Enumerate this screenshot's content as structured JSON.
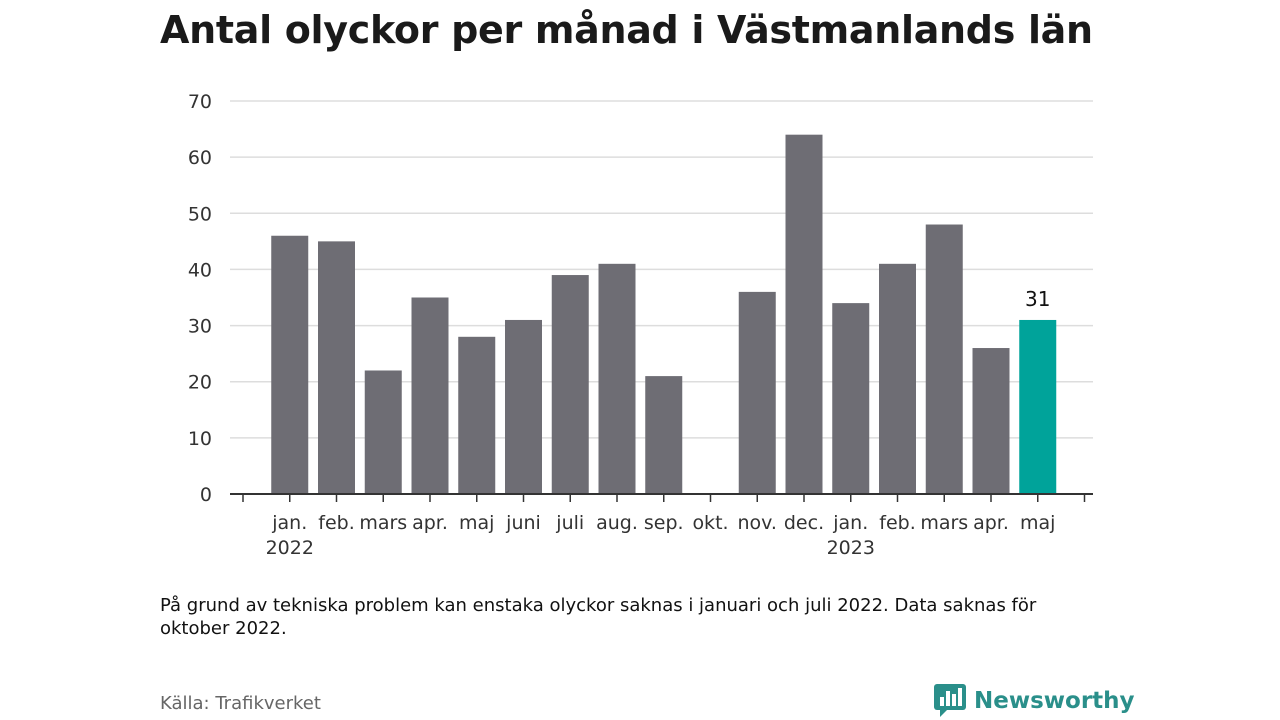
{
  "title": "Antal olyckor per månad i Västmanlands län",
  "note": "På grund av tekniska problem kan enstaka olyckor saknas i januari och juli 2022. Data saknas för oktober 2022.",
  "source": "Källa: Trafikverket",
  "brand": {
    "name": "Newsworthy",
    "icon": "bar-chart-speech-bubble-icon"
  },
  "colors": {
    "bar": "#6e6d74",
    "highlight": "#00a39a",
    "grid": "#dddddd",
    "axis": "#333333",
    "text": "#333333"
  },
  "chart_data": {
    "type": "bar",
    "categories": [
      "jan.",
      "feb.",
      "mars",
      "apr.",
      "maj",
      "juni",
      "juli",
      "aug.",
      "sep.",
      "okt.",
      "nov.",
      "dec.",
      "jan.",
      "feb.",
      "mars",
      "apr.",
      "maj"
    ],
    "year_labels": [
      {
        "index": 0,
        "label": "2022"
      },
      {
        "index": 12,
        "label": "2023"
      }
    ],
    "values": [
      46,
      45,
      22,
      35,
      28,
      31,
      39,
      41,
      21,
      null,
      36,
      64,
      34,
      41,
      48,
      26,
      31
    ],
    "highlight_index": 16,
    "data_labels": [
      {
        "index": 16,
        "text": "31"
      }
    ],
    "yticks": [
      0,
      10,
      20,
      30,
      40,
      50,
      60,
      70
    ],
    "ylim": [
      0,
      70
    ],
    "grid": true,
    "xlabel": "",
    "ylabel": ""
  }
}
